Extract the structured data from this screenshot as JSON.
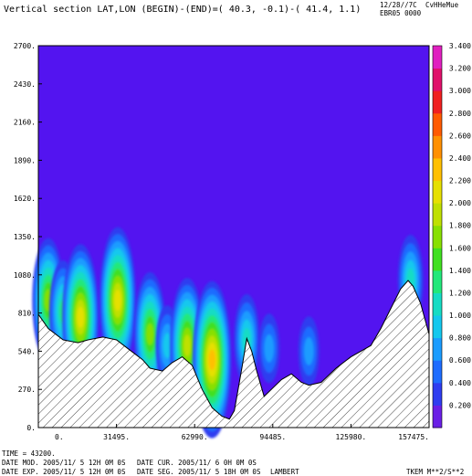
{
  "header": {
    "title": "Vertical section LAT,LON (BEGIN)-(END)=( 40.3, -0.1)-( 41.4, 1.1)",
    "date_code": "12/28//7C",
    "code": "CvHHeMue",
    "run_id": "EBR05 0000"
  },
  "footer": {
    "time": "TIME =   43200.",
    "date_mod": "DATE MOD. 2005/11/ 5  12H 0M 0S",
    "date_cur": "DATE CUR. 2005/11/ 6   0H 0M 0S",
    "date_exp": "DATE EXP. 2005/11/ 5  12H 0M 0S",
    "date_seg": "DATE SEG. 2005/11/ 5  18H 0M 0S",
    "projection": "LAMBERT",
    "variable": "TKEM M**2/S**2"
  },
  "chart_data": {
    "type": "heatmap",
    "title": "Vertical section LAT,LON (BEGIN)-(END)=( 40.3, -0.1)-( 41.4, 1.1)",
    "xlim": [
      0,
      157475
    ],
    "ylim": [
      0,
      2700
    ],
    "x_ticks": [
      "0.",
      "31495.",
      "62990.",
      "94485.",
      "125980.",
      "157475."
    ],
    "y_ticks": [
      "0.",
      "270.",
      "540.",
      "810.",
      "1080.",
      "1350.",
      "1620.",
      "1890.",
      "2160.",
      "2430.",
      "2700."
    ],
    "colorbar": {
      "label": "TKEM M**2/S**2",
      "levels": [
        "0.200",
        "0.400",
        "0.600",
        "0.800",
        "1.000",
        "1.200",
        "1.400",
        "1.600",
        "1.800",
        "2.000",
        "2.200",
        "2.400",
        "2.600",
        "2.800",
        "3.000",
        "3.200",
        "3.400"
      ],
      "colors": [
        "#6a1fe6",
        "#2f3df0",
        "#1e6cff",
        "#1a9cff",
        "#14c8ee",
        "#16dcc4",
        "#22e87a",
        "#40e020",
        "#88e000",
        "#bfe000",
        "#e6e000",
        "#ffc000",
        "#ff9000",
        "#ff5a00",
        "#f02020",
        "#e0106a",
        "#e020c0"
      ],
      "background": "#5314f0"
    },
    "terrain": [
      [
        0,
        800
      ],
      [
        4000,
        700
      ],
      [
        10000,
        620
      ],
      [
        16000,
        600
      ],
      [
        20000,
        620
      ],
      [
        26000,
        640
      ],
      [
        31495,
        620
      ],
      [
        36000,
        560
      ],
      [
        42000,
        480
      ],
      [
        45000,
        420
      ],
      [
        50000,
        400
      ],
      [
        54000,
        460
      ],
      [
        58000,
        500
      ],
      [
        62000,
        440
      ],
      [
        66000,
        270
      ],
      [
        70000,
        140
      ],
      [
        74000,
        80
      ],
      [
        77000,
        60
      ],
      [
        79000,
        120
      ],
      [
        82000,
        420
      ],
      [
        84000,
        630
      ],
      [
        86000,
        540
      ],
      [
        88000,
        400
      ],
      [
        91000,
        220
      ],
      [
        94485,
        280
      ],
      [
        98000,
        340
      ],
      [
        102000,
        380
      ],
      [
        106000,
        320
      ],
      [
        109000,
        300
      ],
      [
        114000,
        320
      ],
      [
        120000,
        420
      ],
      [
        125980,
        500
      ],
      [
        130000,
        540
      ],
      [
        134000,
        580
      ],
      [
        138000,
        700
      ],
      [
        142000,
        840
      ],
      [
        146000,
        980
      ],
      [
        149000,
        1040
      ],
      [
        151000,
        1000
      ],
      [
        154000,
        880
      ],
      [
        157475,
        660
      ]
    ],
    "tke_cores": [
      {
        "x": 4000,
        "y": 900,
        "value": 1.6
      },
      {
        "x": 10000,
        "y": 820,
        "value": 1.2
      },
      {
        "x": 17000,
        "y": 780,
        "value": 2.0
      },
      {
        "x": 32000,
        "y": 900,
        "value": 2.0
      },
      {
        "x": 45000,
        "y": 660,
        "value": 1.6
      },
      {
        "x": 52000,
        "y": 580,
        "value": 0.8
      },
      {
        "x": 60000,
        "y": 580,
        "value": 1.8
      },
      {
        "x": 70000,
        "y": 480,
        "value": 2.2
      },
      {
        "x": 84000,
        "y": 620,
        "value": 1.0
      },
      {
        "x": 93000,
        "y": 560,
        "value": 0.6
      },
      {
        "x": 109000,
        "y": 540,
        "value": 0.6
      },
      {
        "x": 150000,
        "y": 1040,
        "value": 1.0
      }
    ]
  }
}
